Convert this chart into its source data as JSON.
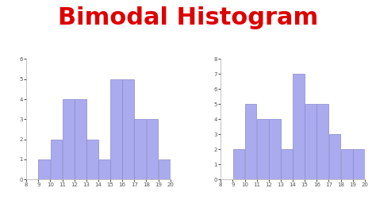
{
  "title": "Bimodal Histogram",
  "title_color": "#dd0000",
  "title_fontsize": 22,
  "title_fontweight": "bold",
  "bar_color": "#aaaaee",
  "bar_edgecolor": "#8888cc",
  "background_color": "#ffffff",
  "left": {
    "bin_edges": [
      8,
      9,
      10,
      11,
      12,
      13,
      14,
      15,
      16,
      17,
      18,
      19,
      20
    ],
    "heights": [
      0,
      1,
      2,
      4,
      4,
      2,
      1,
      5,
      5,
      3,
      3,
      1
    ],
    "xlim": [
      8,
      20
    ],
    "ylim": [
      0,
      6
    ],
    "xticks": [
      8,
      9,
      10,
      11,
      12,
      13,
      14,
      15,
      16,
      17,
      18,
      19,
      20
    ],
    "yticks": [
      0,
      1,
      2,
      3,
      4,
      5,
      6
    ]
  },
  "right": {
    "bin_edges": [
      8,
      9,
      10,
      11,
      12,
      13,
      14,
      15,
      16,
      17,
      18,
      19,
      20
    ],
    "heights": [
      0,
      2,
      5,
      4,
      4,
      2,
      7,
      5,
      5,
      3,
      2,
      2
    ],
    "xlim": [
      8,
      20
    ],
    "ylim": [
      0,
      8
    ],
    "xticks": [
      8,
      9,
      10,
      11,
      12,
      13,
      14,
      15,
      16,
      17,
      18,
      19,
      20
    ],
    "yticks": [
      0,
      1,
      2,
      3,
      4,
      5,
      6,
      7,
      8
    ]
  }
}
